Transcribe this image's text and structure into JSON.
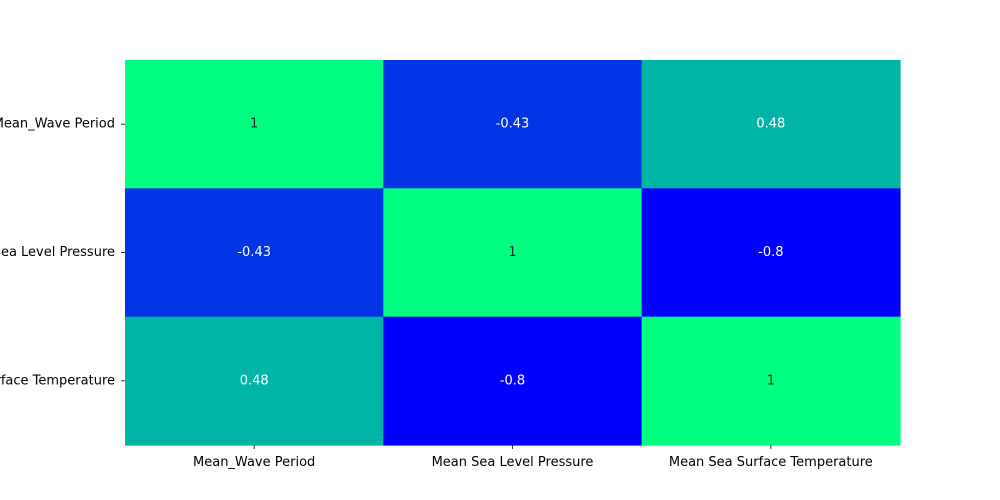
{
  "chart_data": {
    "type": "heatmap",
    "title": "",
    "xlabel": "",
    "ylabel": "",
    "x_categories": [
      "Mean_Wave Period",
      "Mean Sea Level Pressure",
      "Mean Sea Surface Temperature"
    ],
    "y_categories": [
      "Mean_Wave Period",
      "Mean Sea Level Pressure",
      "Mean Sea Surface Temperature"
    ],
    "values": [
      [
        1,
        -0.43,
        0.48
      ],
      [
        -0.43,
        1,
        -0.8
      ],
      [
        0.48,
        -0.8,
        1
      ]
    ],
    "colormap": "winter",
    "vmin": -0.8,
    "vmax": 1,
    "colorbar": false
  },
  "colors": {
    "low": "#0000ff",
    "high": "#00ff80",
    "text_on_light": "#262626",
    "text_on_dark": "#ffffff"
  }
}
